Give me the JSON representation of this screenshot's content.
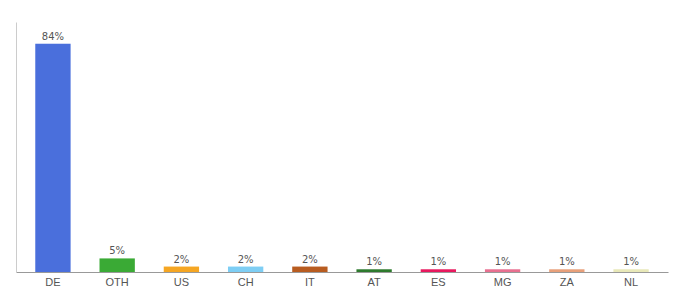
{
  "chart_data": {
    "type": "bar",
    "categories": [
      "DE",
      "OTH",
      "US",
      "CH",
      "IT",
      "AT",
      "ES",
      "MG",
      "ZA",
      "NL"
    ],
    "values": [
      84,
      5,
      2,
      2,
      2,
      1,
      1,
      1,
      1,
      1
    ],
    "value_labels": [
      "84%",
      "5%",
      "2%",
      "2%",
      "2%",
      "1%",
      "1%",
      "1%",
      "1%",
      "1%"
    ],
    "colors": [
      "#4a6fdc",
      "#3aaa35",
      "#f5a623",
      "#7ecef4",
      "#b85c20",
      "#2d7a2d",
      "#e8185e",
      "#e87090",
      "#e8a07a",
      "#e8e8b8"
    ],
    "ylim": [
      0,
      92
    ],
    "data_labels": true,
    "tick_labels": "x",
    "grid": false
  }
}
